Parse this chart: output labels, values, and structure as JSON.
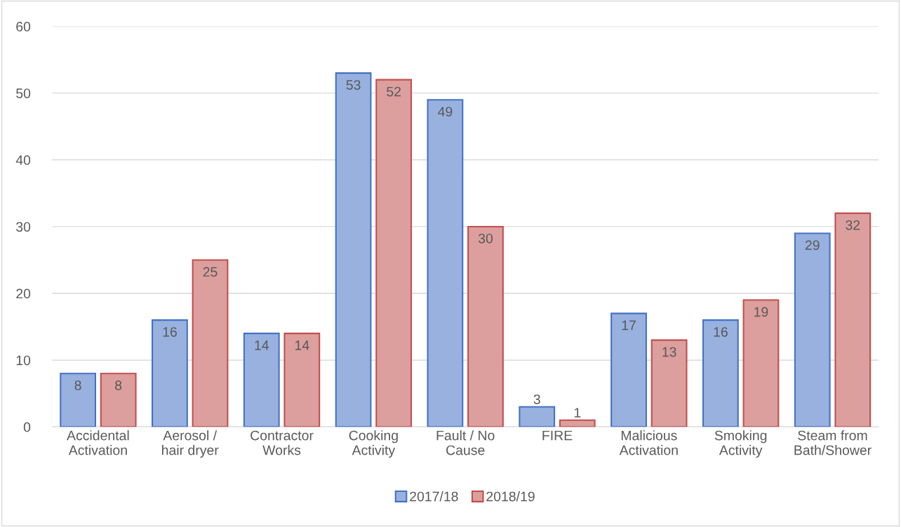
{
  "chart_data": {
    "type": "bar",
    "categories": [
      "Accidental\nActivation",
      "Aerosol /\nhair dryer",
      "Contractor\nWorks",
      "Cooking\nActivity",
      "Fault / No\nCause",
      "FIRE",
      "Malicious\nActivation",
      "Smoking\nActivity",
      "Steam from\nBath/Shower"
    ],
    "series": [
      {
        "name": "2017/18",
        "color": "#4472c4",
        "values": [
          8,
          16,
          14,
          53,
          49,
          3,
          17,
          16,
          29
        ]
      },
      {
        "name": "2018/19",
        "color": "#c0504d",
        "values": [
          8,
          25,
          14,
          52,
          30,
          1,
          13,
          19,
          32
        ]
      }
    ],
    "ylim": [
      0,
      60
    ],
    "yticks": [
      0,
      10,
      20,
      30,
      40,
      50,
      60
    ],
    "grid": "y",
    "legend": "bottom",
    "data_labels": true
  }
}
